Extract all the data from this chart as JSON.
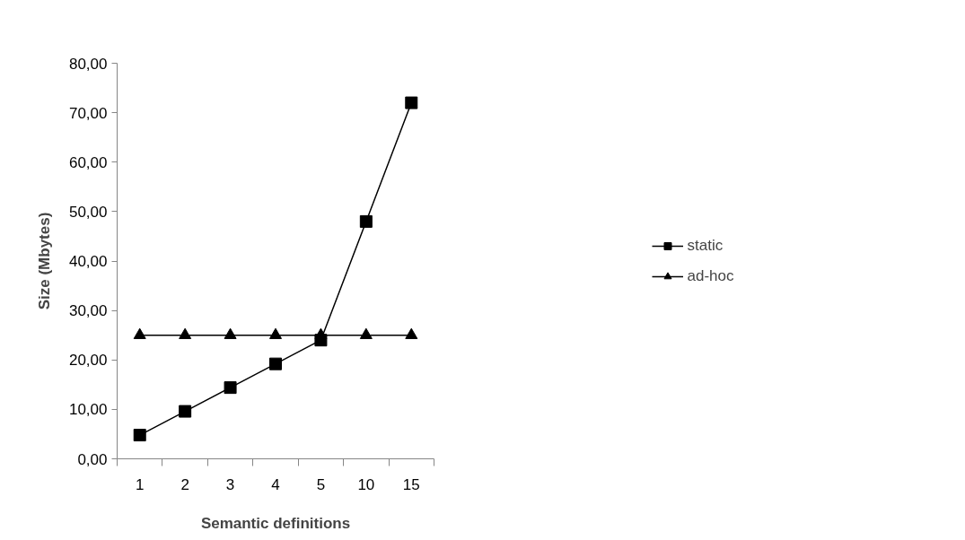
{
  "chart_data": {
    "type": "line",
    "xlabel": "Semantic definitions",
    "ylabel": "Size (Mbytes)",
    "categories": [
      "1",
      "2",
      "3",
      "4",
      "5",
      "10",
      "15"
    ],
    "series": [
      {
        "name": "static",
        "color": "#000000",
        "marker": "square",
        "values": [
          4.8,
          9.6,
          14.4,
          19.2,
          24.0,
          48.0,
          72.0
        ]
      },
      {
        "name": "ad-hoc",
        "color": "#000000",
        "marker": "triangle",
        "values": [
          25,
          25,
          25,
          25,
          25,
          25,
          25
        ]
      }
    ],
    "ylim": [
      0,
      80
    ],
    "yticks": [
      {
        "value": 0,
        "label": "0,00"
      },
      {
        "value": 10,
        "label": "10,00"
      },
      {
        "value": 20,
        "label": "20,00"
      },
      {
        "value": 30,
        "label": "30,00"
      },
      {
        "value": 40,
        "label": "40,00"
      },
      {
        "value": 50,
        "label": "50,00"
      },
      {
        "value": 60,
        "label": "60,00"
      },
      {
        "value": 70,
        "label": "70,00"
      },
      {
        "value": 80,
        "label": "80,00"
      }
    ],
    "grid": false,
    "legend": "right",
    "line_style": "solid"
  }
}
